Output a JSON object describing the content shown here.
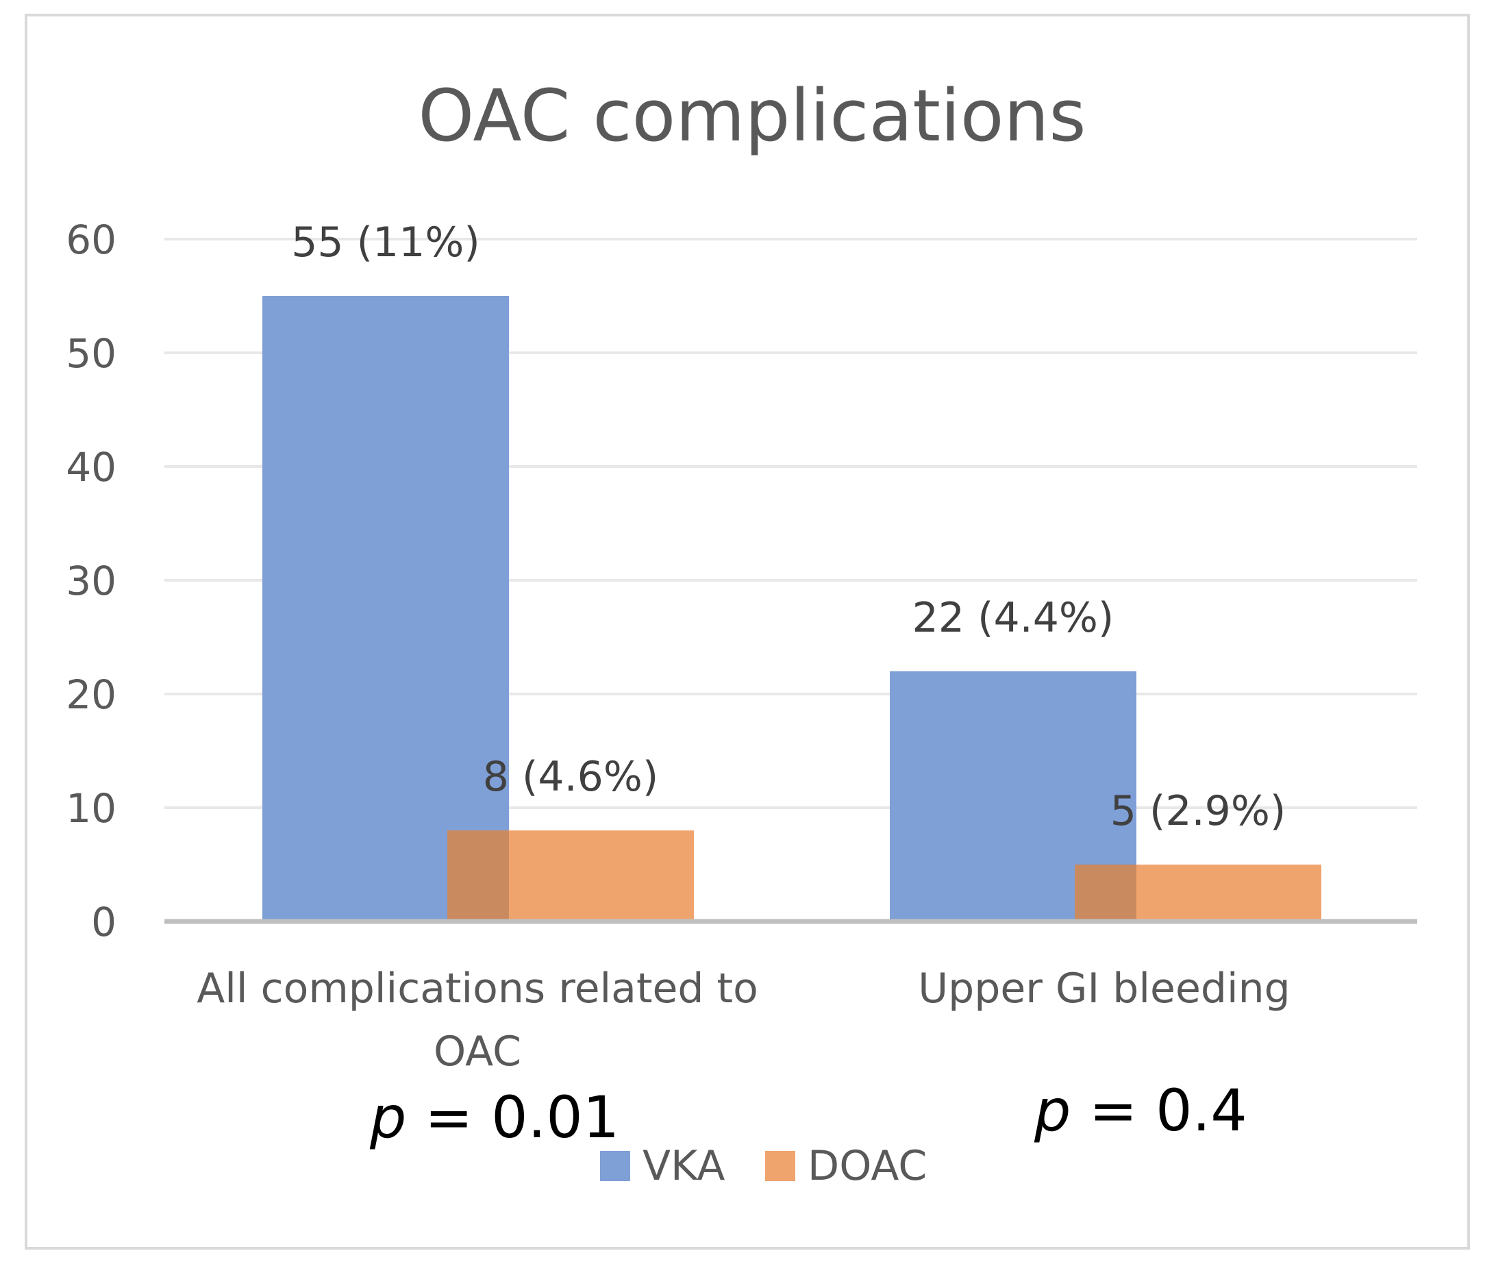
{
  "chart_data": {
    "type": "bar",
    "title": "OAC complications",
    "categories": [
      [
        "All complications related to",
        "OAC"
      ],
      [
        "Upper GI bleeding"
      ]
    ],
    "series": [
      {
        "name": "VKA",
        "color": "#7f9fd7",
        "values": [
          55,
          22
        ],
        "labels": [
          "55 (11%)",
          "22 (4.4%)"
        ]
      },
      {
        "name": "DOAC",
        "color": "#f0a46d",
        "values": [
          8,
          5
        ],
        "labels": [
          "8 (4.6%)",
          "5 (2.9%)"
        ]
      }
    ],
    "ylim": [
      0,
      60
    ],
    "yticks": [
      0,
      10,
      20,
      30,
      40,
      50,
      60
    ],
    "grid": true,
    "legend": "bottom",
    "annotations": [
      {
        "italic": "p",
        "rest": " = 0.01",
        "category": 0
      },
      {
        "italic": "p",
        "rest": " = 0.4",
        "category": 1
      }
    ]
  },
  "colors": {
    "grid": "#e8e8e8",
    "axis": "#bfbfbf",
    "overlap": "#c98a60"
  }
}
